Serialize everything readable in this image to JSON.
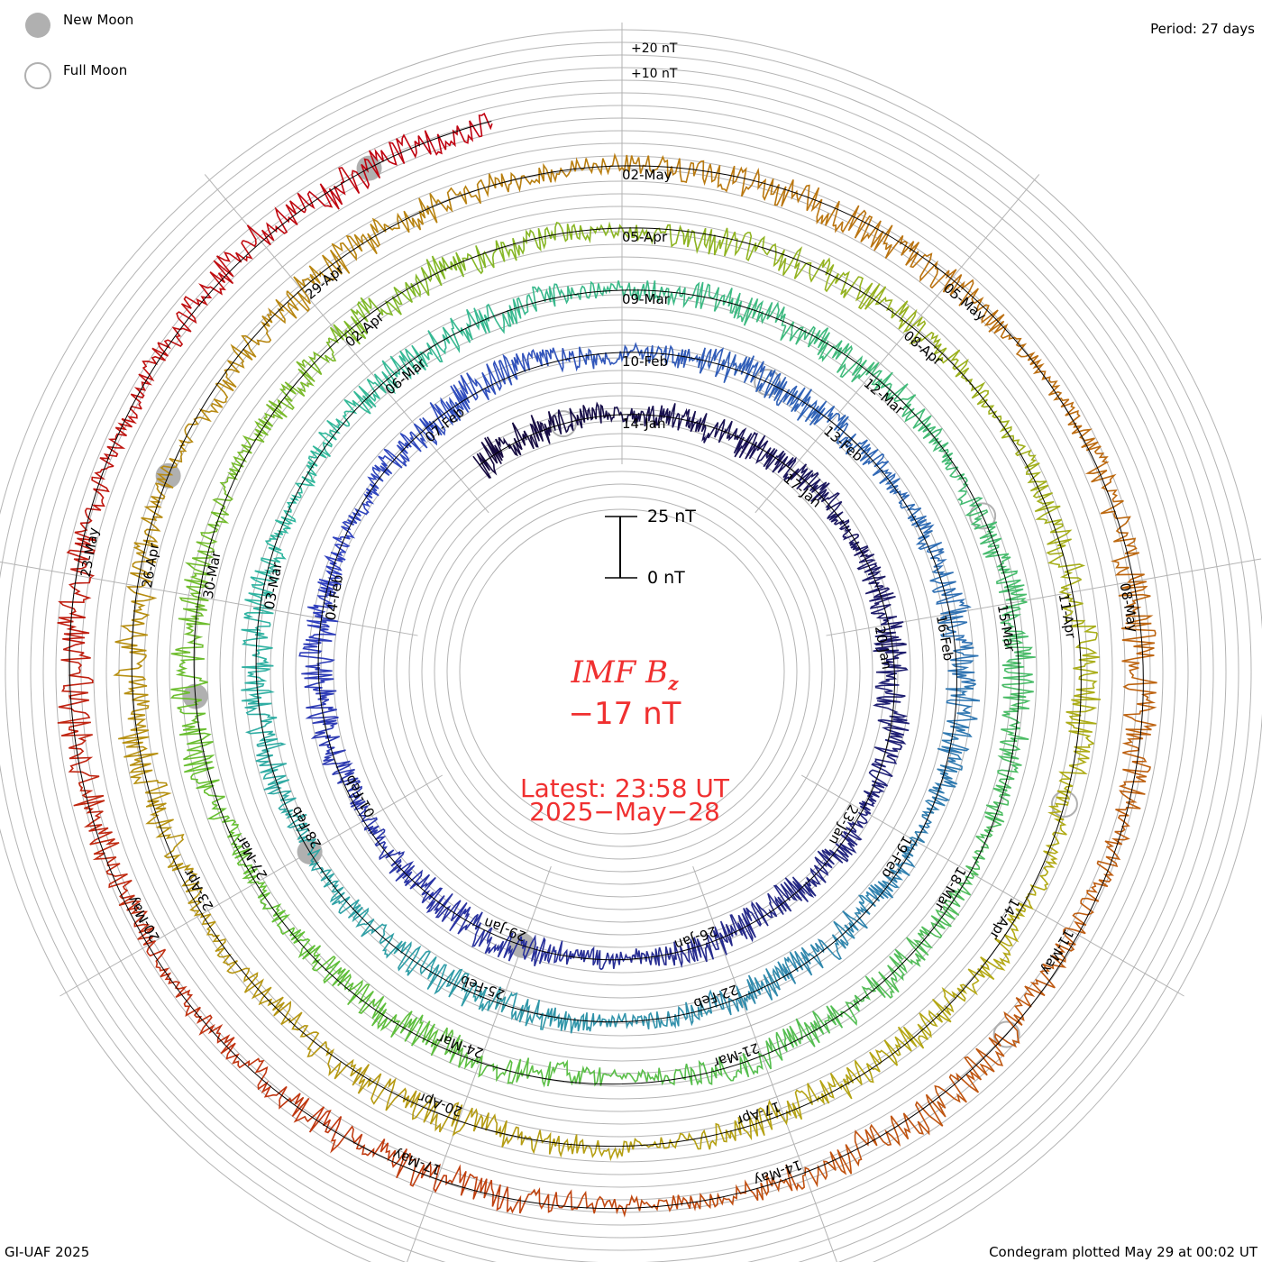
{
  "legend": {
    "new_moon": "New Moon",
    "full_moon": "Full Moon"
  },
  "period": "Period: 27 days",
  "footer": {
    "credit": "GI-UAF 2025",
    "plotted": "Condegram plotted May 29 at 00:02 UT"
  },
  "center": {
    "title_main": "IMF B",
    "title_sub": "z",
    "value": "−17 nT",
    "latest": "Latest: 23:58 UT",
    "date": "2025−May−28",
    "scale_top": "25 nT",
    "scale_bottom": "0 nT"
  },
  "chart_data": {
    "type": "line",
    "subtype": "condegram-spiral",
    "title": "IMF Bz",
    "units": "nT",
    "period_days": 27,
    "latest_value": -17,
    "start_offset_days": -2.6,
    "end_offset_days": 134.0,
    "date_labels": [
      "14-Jan",
      "17-Jan",
      "20-Jan",
      "23-Jan",
      "26-Jan",
      "29-Jan",
      "01-Feb",
      "04-Feb",
      "07-Feb",
      "10-Feb",
      "13-Feb",
      "16-Feb",
      "19-Feb",
      "22-Feb",
      "25-Feb",
      "28-Feb",
      "03-Mar",
      "06-Mar",
      "09-Mar",
      "12-Mar",
      "15-Mar",
      "18-Mar",
      "21-Mar",
      "24-Mar",
      "27-Mar",
      "30-Mar",
      "02-Apr",
      "05-Apr",
      "08-Apr",
      "11-Apr",
      "14-Apr",
      "17-Apr",
      "20-Apr",
      "23-Apr",
      "26-Apr",
      "29-Apr",
      "02-May",
      "05-May",
      "08-May",
      "11-May",
      "14-May",
      "17-May",
      "20-May",
      "23-May"
    ],
    "label_interval_days": 3,
    "scale_labels": [
      "+20 nT",
      "+10 nT"
    ],
    "new_moon_offsets_days": [
      15,
      45,
      74,
      103,
      133
    ],
    "full_moon_offsets_days": [
      -1,
      29,
      59,
      89,
      118
    ]
  },
  "colors": {
    "accent": "#f03030",
    "grid": "#b4b4b4"
  }
}
